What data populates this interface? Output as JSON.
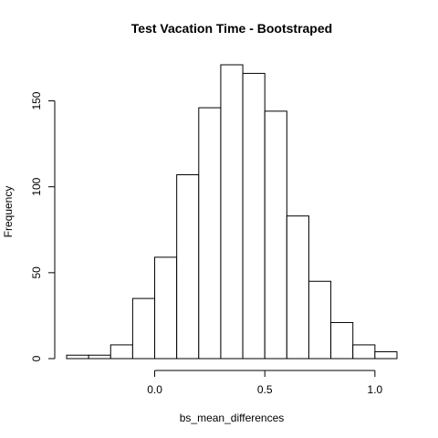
{
  "chart_data": {
    "type": "bar",
    "title": "Test Vacation Time - Bootstraped",
    "xlabel": "bs_mean_differences",
    "ylabel": "Frequency",
    "bin_width": 0.1,
    "bins": [
      {
        "start": -0.4,
        "end": -0.3,
        "count": 2
      },
      {
        "start": -0.3,
        "end": -0.2,
        "count": 2
      },
      {
        "start": -0.2,
        "end": -0.1,
        "count": 8
      },
      {
        "start": -0.1,
        "end": 0.0,
        "count": 35
      },
      {
        "start": 0.0,
        "end": 0.1,
        "count": 59
      },
      {
        "start": 0.1,
        "end": 0.2,
        "count": 107
      },
      {
        "start": 0.2,
        "end": 0.3,
        "count": 146
      },
      {
        "start": 0.3,
        "end": 0.4,
        "count": 171
      },
      {
        "start": 0.4,
        "end": 0.5,
        "count": 166
      },
      {
        "start": 0.5,
        "end": 0.6,
        "count": 144
      },
      {
        "start": 0.6,
        "end": 0.7,
        "count": 83
      },
      {
        "start": 0.7,
        "end": 0.8,
        "count": 45
      },
      {
        "start": 0.8,
        "end": 0.9,
        "count": 21
      },
      {
        "start": 0.9,
        "end": 1.0,
        "count": 8
      },
      {
        "start": 1.0,
        "end": 1.1,
        "count": 4
      }
    ],
    "xlim": [
      -0.4,
      1.1
    ],
    "ylim": [
      0,
      171
    ],
    "x_ticks": [
      0.0,
      0.5,
      1.0
    ],
    "x_tick_labels": [
      "0.0",
      "0.5",
      "1.0"
    ],
    "y_ticks": [
      0,
      50,
      100,
      150
    ],
    "y_tick_labels": [
      "0",
      "50",
      "100",
      "150"
    ],
    "grid": false,
    "legend": "none"
  }
}
